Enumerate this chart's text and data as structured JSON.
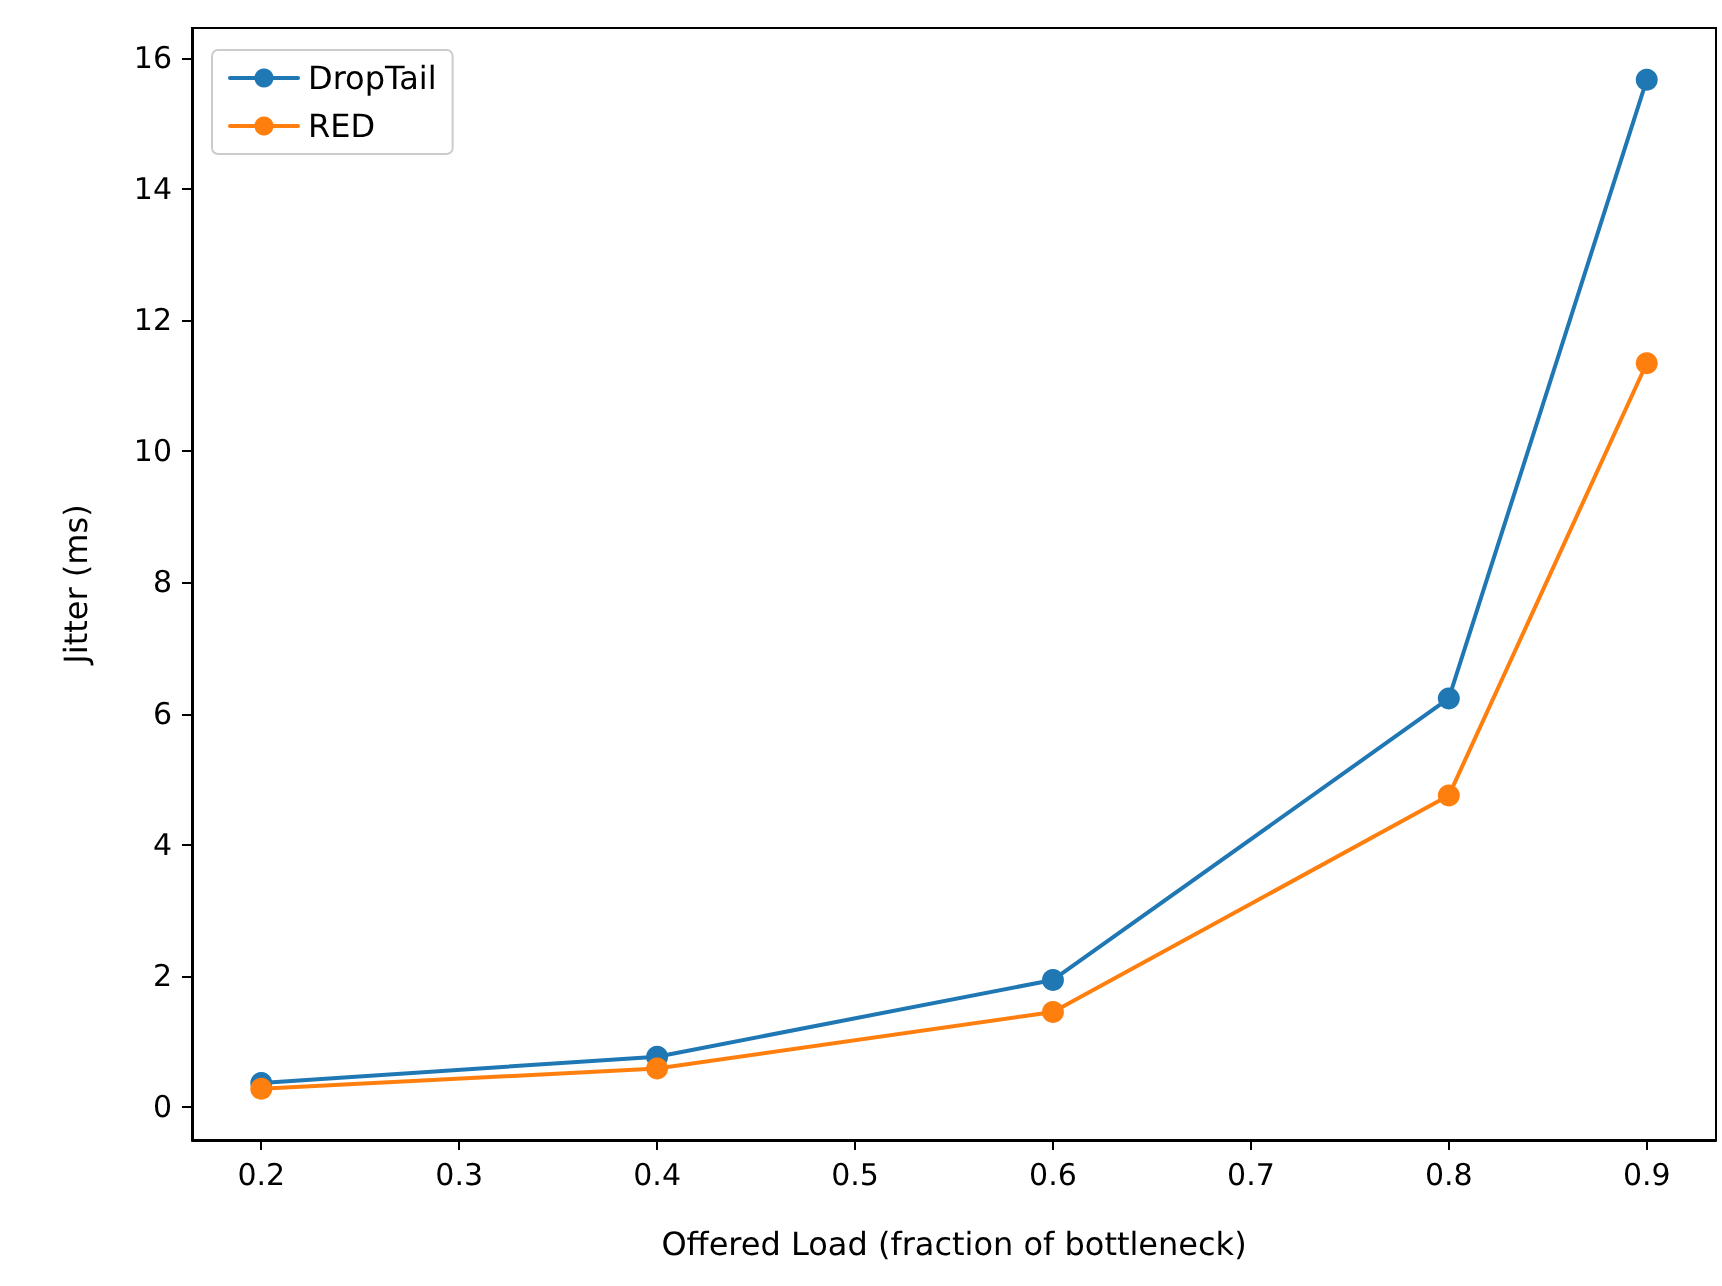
{
  "chart_data": {
    "type": "line",
    "xlabel": "Offered Load (fraction of bottleneck)",
    "ylabel": "Jitter (ms)",
    "x": [
      0.2,
      0.4,
      0.6,
      0.8,
      0.9
    ],
    "series": [
      {
        "name": "DropTail",
        "color": "#1f77b4",
        "values": [
          0.37,
          0.77,
          1.94,
          6.23,
          15.66
        ]
      },
      {
        "name": "RED",
        "color": "#ff7f0e",
        "values": [
          0.28,
          0.59,
          1.45,
          4.75,
          11.34
        ]
      }
    ],
    "xlim": [
      0.165,
      0.935
    ],
    "ylim": [
      -0.5,
      16.45
    ],
    "xticks": [
      0.2,
      0.3,
      0.4,
      0.5,
      0.6,
      0.7,
      0.8,
      0.9
    ],
    "yticks": [
      0,
      2,
      4,
      6,
      8,
      10,
      12,
      14,
      16
    ],
    "grid": false,
    "legend": "top left",
    "marker": "circle",
    "line_style": "solid"
  }
}
